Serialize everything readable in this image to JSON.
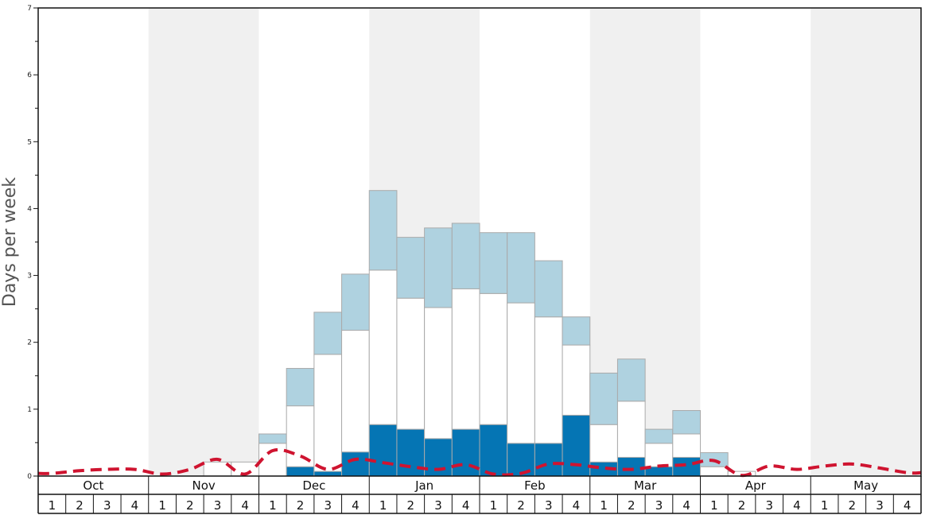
{
  "chart_data": {
    "type": "bar",
    "ylabel": "Days per week",
    "ylim": [
      0,
      7
    ],
    "y_ticks": [
      "0",
      "1",
      "2",
      "3",
      "4",
      "5",
      "6",
      "7"
    ],
    "months": [
      "Oct",
      "Nov",
      "Dec",
      "Jan",
      "Feb",
      "Mar",
      "Apr",
      "May"
    ],
    "weeks": [
      "1",
      "2",
      "3",
      "4"
    ],
    "stack_order": [
      "dark",
      "white",
      "light"
    ],
    "colors": {
      "dark": "#0575b4",
      "white": "#ffffff",
      "light": "#afd2e0",
      "line": "#cf1430",
      "shade": "#f0f0f0",
      "bar_edge": "#aaaaaa"
    },
    "series": [
      {
        "key": "dark",
        "values": [
          0,
          0,
          0,
          0,
          0,
          0,
          0,
          0,
          0,
          0.14,
          0.07,
          0.36,
          0.77,
          0.7,
          0.56,
          0.7,
          0.77,
          0.49,
          0.49,
          0.91,
          0.21,
          0.28,
          0.14,
          0.28,
          0,
          0,
          0,
          0,
          0,
          0,
          0,
          0
        ]
      },
      {
        "key": "white",
        "values": [
          0,
          0,
          0,
          0,
          0,
          0,
          0.21,
          0.21,
          0.49,
          0.91,
          1.75,
          1.82,
          2.31,
          1.96,
          1.96,
          2.1,
          1.96,
          2.1,
          1.89,
          1.05,
          0.56,
          0.84,
          0.35,
          0.35,
          0.14,
          0.07,
          0,
          0,
          0,
          0,
          0,
          0
        ]
      },
      {
        "key": "light",
        "values": [
          0,
          0,
          0,
          0,
          0,
          0,
          0,
          0,
          0.14,
          0.56,
          0.63,
          0.84,
          1.19,
          0.91,
          1.19,
          0.98,
          0.91,
          1.05,
          0.84,
          0.42,
          0.77,
          0.63,
          0.21,
          0.35,
          0.21,
          0,
          0,
          0,
          0,
          0,
          0,
          0
        ]
      }
    ],
    "line": {
      "style": "dashed",
      "values": [
        0.04,
        0.08,
        0.1,
        0.1,
        0.03,
        0.1,
        0.25,
        0.03,
        0.38,
        0.3,
        0.1,
        0.25,
        0.2,
        0.14,
        0.1,
        0.17,
        0.03,
        0.04,
        0.18,
        0.17,
        0.12,
        0.1,
        0.15,
        0.17,
        0.23,
        0.01,
        0.15,
        0.1,
        0.15,
        0.18,
        0.12,
        0.05
      ]
    },
    "grid": false,
    "shaded_months": [
      "Nov",
      "Jan",
      "Mar",
      "May"
    ]
  }
}
